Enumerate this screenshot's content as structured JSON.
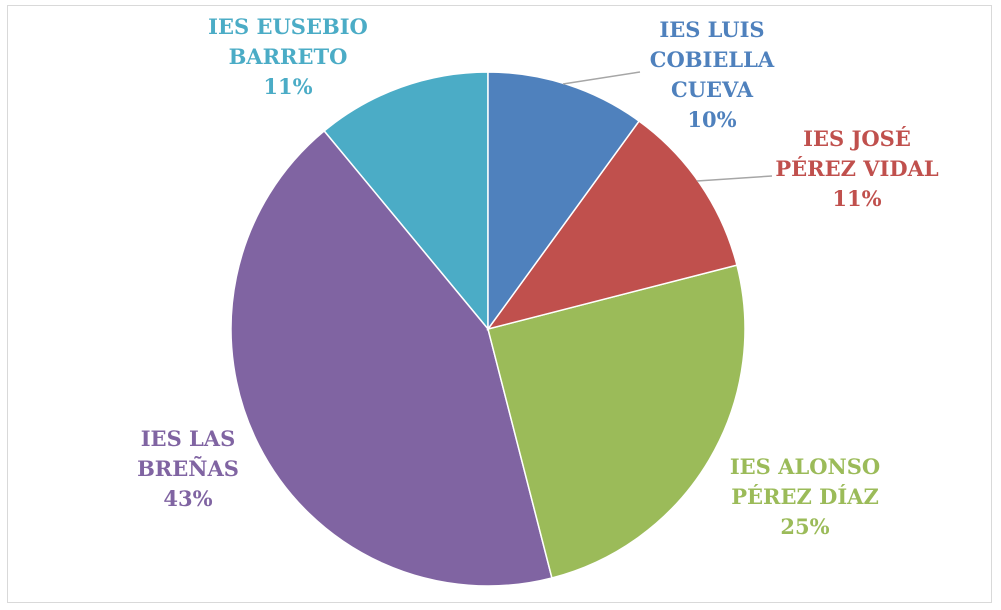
{
  "chart_data": {
    "type": "pie",
    "categories": [
      "IES LUIS COBIELLA CUEVA",
      "IES JOSÉ PÉREZ VIDAL",
      "IES ALONSO PÉREZ DÍAZ",
      "IES LAS BREÑAS",
      "IES EUSEBIO BARRETO"
    ],
    "values": [
      10,
      11,
      25,
      43,
      11
    ],
    "value_labels": [
      "10%",
      "11%",
      "25%",
      "43%",
      "11%"
    ],
    "colors": [
      "#4f81bd",
      "#c0504d",
      "#9bbb59",
      "#8064a2",
      "#4bacc6"
    ]
  }
}
